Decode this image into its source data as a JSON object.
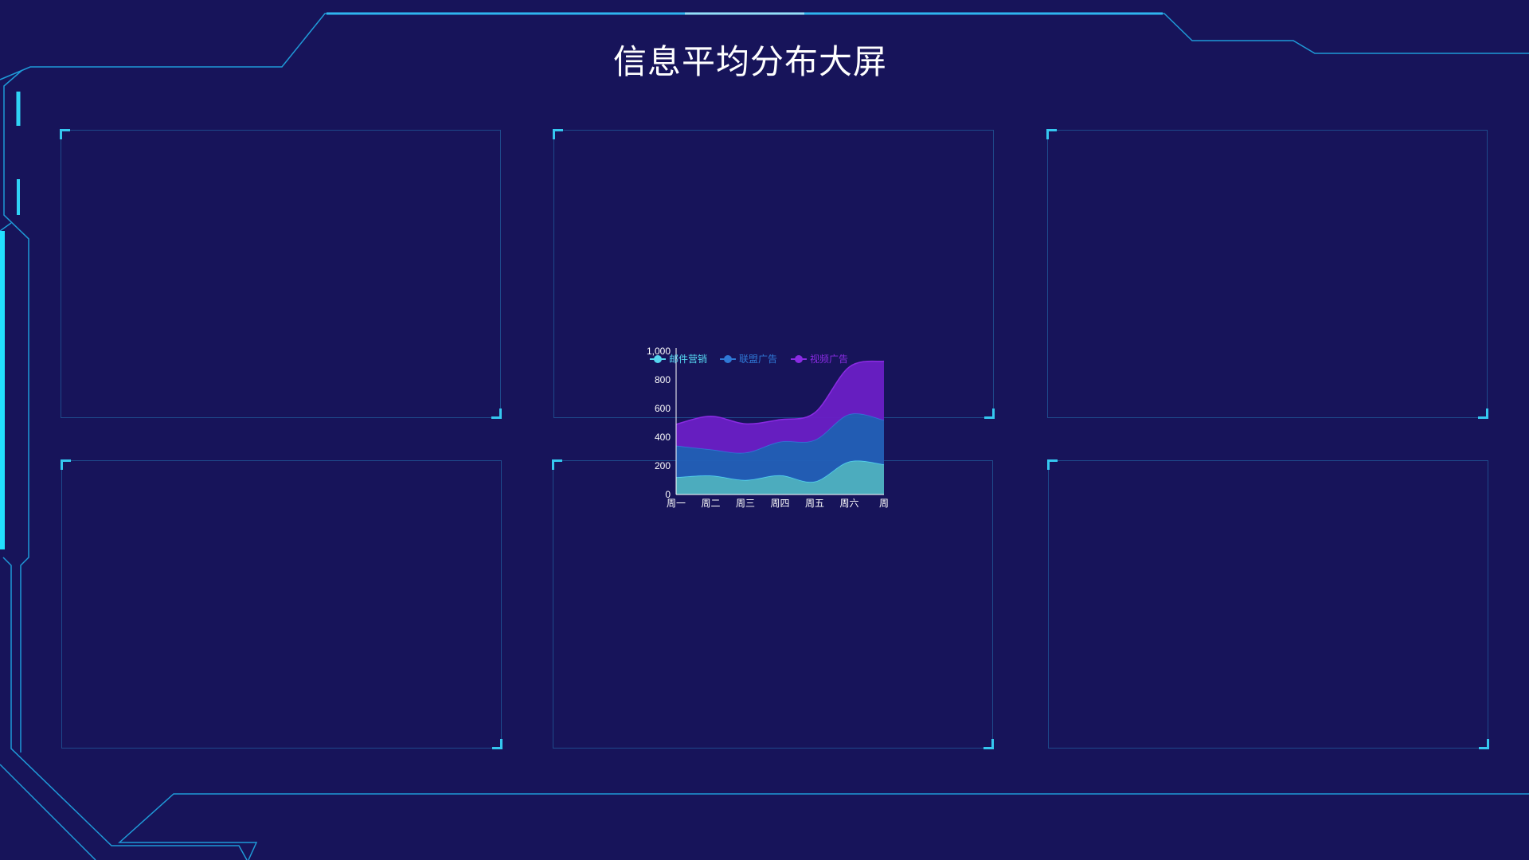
{
  "page": {
    "title": "信息平均分布大屏"
  },
  "panels": [
    {
      "id": "panel-1"
    },
    {
      "id": "panel-2"
    },
    {
      "id": "panel-3"
    },
    {
      "id": "panel-4"
    },
    {
      "id": "panel-5"
    },
    {
      "id": "panel-6"
    }
  ],
  "colors": {
    "background": "#17145a",
    "frame": "#1f9ad8",
    "frame_bright": "#2fd3f5",
    "axis": "#ffffff"
  },
  "chart_data": {
    "type": "area",
    "stacked": true,
    "smooth": true,
    "categories": [
      "周一",
      "周二",
      "周三",
      "周四",
      "周五",
      "周六",
      "周日"
    ],
    "visible_category_labels": [
      "周一",
      "周二",
      "周三",
      "周四",
      "周五",
      "周六",
      "周"
    ],
    "y_ticks": [
      "0",
      "200",
      "400",
      "600",
      "800",
      "1,000"
    ],
    "ylim": [
      0,
      1000
    ],
    "legend_position": "top",
    "series": [
      {
        "name": "邮件营销",
        "color": "#55d6f0",
        "fill": "#4fb4c4",
        "values": [
          120,
          132,
          101,
          134,
          90,
          230,
          210
        ]
      },
      {
        "name": "联盟广告",
        "color": "#2f79d6",
        "fill": "#2360b8",
        "values": [
          220,
          182,
          191,
          234,
          290,
          330,
          310
        ]
      },
      {
        "name": "视频广告",
        "color": "#8a2be2",
        "fill": "#6a1fc6",
        "values": [
          150,
          232,
          201,
          154,
          190,
          330,
          410
        ]
      }
    ]
  }
}
